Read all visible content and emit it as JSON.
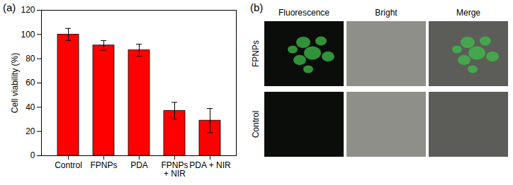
{
  "chart_data": {
    "type": "bar",
    "title": "(a)",
    "categories": [
      "Control",
      "FPNPs",
      "PDA",
      "FPNPs\n+ NIR",
      "PDA + NIR"
    ],
    "values": [
      100,
      91,
      87,
      37,
      29
    ],
    "errors": [
      5,
      4,
      5,
      7,
      10
    ],
    "color": "#ff0000",
    "ylabel": "Cell viability (%)",
    "ylim": [
      0,
      120
    ],
    "yticks": [
      0,
      20,
      40,
      60,
      80,
      100,
      120
    ]
  },
  "panel_b": {
    "label": "(b)",
    "columns": [
      "Fluorescence",
      "Bright",
      "Merge"
    ],
    "rows": [
      "FPNPs",
      "Control"
    ]
  }
}
